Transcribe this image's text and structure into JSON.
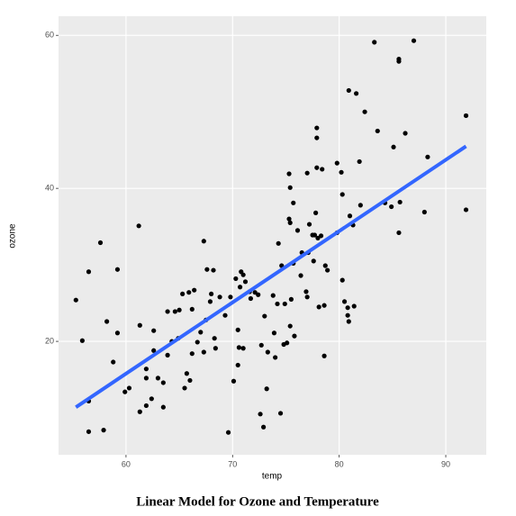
{
  "chart_data": {
    "type": "scatter",
    "title": "Linear Model for Ozone and Temperature",
    "x_label": "temp",
    "y_label": "ozone",
    "x": [
      55.3,
      55.9,
      56.5,
      56.5,
      56.5,
      57.6,
      57.9,
      58.2,
      58.8,
      59.2,
      59.2,
      59.9,
      60.3,
      61.2,
      61.3,
      61.3,
      61.9,
      61.9,
      61.9,
      62.4,
      62.6,
      62.6,
      63.0,
      63.5,
      63.5,
      63.9,
      63.9,
      64.3,
      64.6,
      64.9,
      65.0,
      65.3,
      65.5,
      65.7,
      65.9,
      66.0,
      66.2,
      66.2,
      66.4,
      66.7,
      67.0,
      67.3,
      67.3,
      67.5,
      67.6,
      67.9,
      68.0,
      68.2,
      68.3,
      68.4,
      68.8,
      69.3,
      69.6,
      69.8,
      70.1,
      70.3,
      70.5,
      70.5,
      70.6,
      70.7,
      70.8,
      71.0,
      71.0,
      71.2,
      71.6,
      71.7,
      72.1,
      72.4,
      72.6,
      72.7,
      72.9,
      73.0,
      73.2,
      73.3,
      73.8,
      73.9,
      74.0,
      74.2,
      74.3,
      74.5,
      74.6,
      74.8,
      74.9,
      75.1,
      75.3,
      75.3,
      75.4,
      75.4,
      75.4,
      75.5,
      75.7,
      75.7,
      75.8,
      76.1,
      76.4,
      76.5,
      76.9,
      77.0,
      77.2,
      77.5,
      77.0,
      77.1,
      77.6,
      77.7,
      77.8,
      77.9,
      77.9,
      77.9,
      78.0,
      78.1,
      78.3,
      78.4,
      78.6,
      78.6,
      78.7,
      78.9,
      79.8,
      79.8,
      80.2,
      80.3,
      80.3,
      80.5,
      80.8,
      80.8,
      80.9,
      81.0,
      80.9,
      81.4,
      81.3,
      81.6,
      81.9,
      82.0,
      82.4,
      83.3,
      83.6,
      84.3,
      84.9,
      85.1,
      85.6,
      85.6,
      85.7,
      85.6,
      86.2,
      87.0,
      88.3,
      88.0,
      91.9,
      91.9
    ],
    "values": [
      25.4,
      20.1,
      12.2,
      8.2,
      29.1,
      32.9,
      8.4,
      22.6,
      17.3,
      29.4,
      21.1,
      13.4,
      13.9,
      35.1,
      22.1,
      10.8,
      11.6,
      15.2,
      16.4,
      12.5,
      18.8,
      21.4,
      15.2,
      14.6,
      11.4,
      18.2,
      23.9,
      20.0,
      23.9,
      20.4,
      24.1,
      26.2,
      13.9,
      15.8,
      26.4,
      14.9,
      18.4,
      24.2,
      26.7,
      19.9,
      21.2,
      33.1,
      18.6,
      22.8,
      29.4,
      25.2,
      26.2,
      29.3,
      20.4,
      19.1,
      25.8,
      23.4,
      8.1,
      25.8,
      14.8,
      28.2,
      21.5,
      16.9,
      19.2,
      27.1,
      29.1,
      28.7,
      19.1,
      27.8,
      26.5,
      25.6,
      26.4,
      26.1,
      10.5,
      19.5,
      8.8,
      23.3,
      13.8,
      18.6,
      26.0,
      21.1,
      17.9,
      24.9,
      32.8,
      10.6,
      29.9,
      19.6,
      24.9,
      19.8,
      41.9,
      36.0,
      22.0,
      40.1,
      35.5,
      25.5,
      30.2,
      38.1,
      20.7,
      34.5,
      28.6,
      31.6,
      26.5,
      42.0,
      35.3,
      33.9,
      25.8,
      31.6,
      30.5,
      33.9,
      36.8,
      47.9,
      46.6,
      42.7,
      33.5,
      24.5,
      33.8,
      42.5,
      18.1,
      24.7,
      29.9,
      29.3,
      43.3,
      34.2,
      42.1,
      39.2,
      28.0,
      25.2,
      24.4,
      23.4,
      22.6,
      36.4,
      52.8,
      24.6,
      35.2,
      52.4,
      43.5,
      37.8,
      50.0,
      59.1,
      47.5,
      38.1,
      37.6,
      45.4,
      56.9,
      56.6,
      38.2,
      34.2,
      47.2,
      59.3,
      44.1,
      36.9,
      49.5,
      37.2
    ],
    "color": "#000000",
    "fit": {
      "x": [
        55.3,
        91.9
      ],
      "values": [
        11.4,
        45.5
      ],
      "color": "#3366ff"
    },
    "xlim": [
      53.67,
      93.8
    ],
    "ylim": [
      5.18,
      62.5
    ],
    "xticks": [
      60,
      70,
      80,
      90
    ],
    "yticks": [
      20,
      40,
      60
    ],
    "grid": true
  }
}
